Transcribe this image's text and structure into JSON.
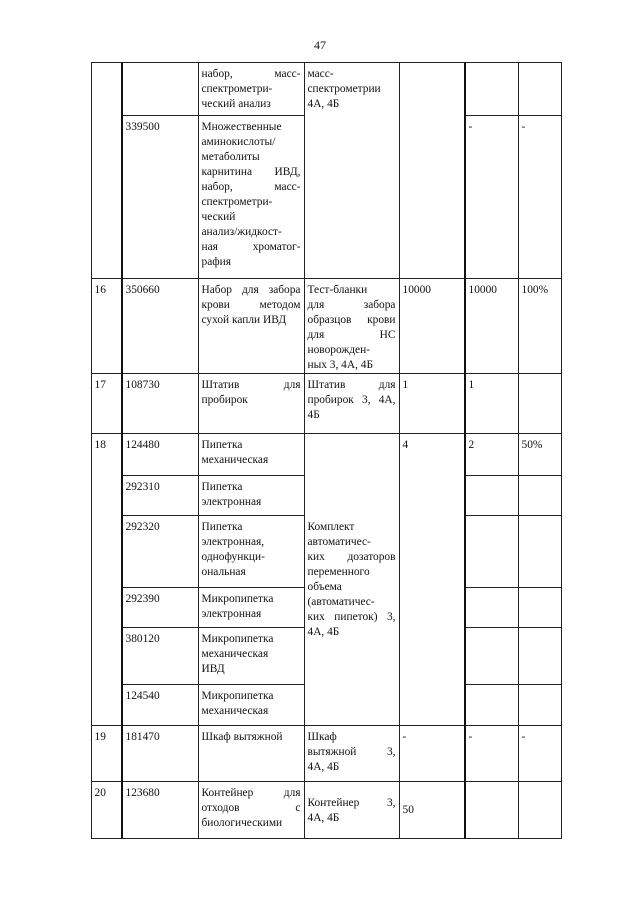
{
  "page_number": "47",
  "rows": [
    {
      "number": "",
      "items": [
        {
          "code": "",
          "name": [
            "набор, масс-",
            "спектрометри-",
            "ческий анализ"
          ],
          "available": "",
          "percent": ""
        },
        {
          "code": "339500",
          "name": [
            "Множественные",
            "аминокислоты/",
            "метаболиты",
            "карнитина ИВД,",
            "набор, масс-",
            "спектрометри-",
            "ческий",
            "анализ/жидкост-",
            "ная хроматог-",
            "рафия"
          ],
          "available": "-",
          "percent": "-"
        }
      ],
      "analog": [
        "масс-",
        "спектрометрии",
        "4А, 4Б"
      ],
      "required": ""
    },
    {
      "number": "16",
      "items": [
        {
          "code": "350660",
          "name": [
            "Набор для забора",
            "крови методом",
            "сухой капли ИВД"
          ],
          "available": "10000",
          "percent": "100%"
        }
      ],
      "analog": [
        "Тест-бланки",
        "для забора",
        "образцов крови",
        "для НС",
        "новорожден-",
        "ных 3, 4А, 4Б"
      ],
      "required": "10000"
    },
    {
      "number": "17",
      "items": [
        {
          "code": "108730",
          "name": [
            "Штатив для",
            "пробирок"
          ],
          "available": "1",
          "percent": ""
        }
      ],
      "analog": [
        "Штатив для",
        "пробирок 3, 4А,",
        "4Б"
      ],
      "required": "1"
    },
    {
      "number": "18",
      "items": [
        {
          "code": "124480",
          "name": [
            "Пипетка",
            "механическая"
          ],
          "available": "2",
          "percent": "50%"
        },
        {
          "code": "292310",
          "name": [
            "Пипетка",
            "электронная"
          ],
          "available": "",
          "percent": ""
        },
        {
          "code": "292320",
          "name": [
            "Пипетка",
            "электронная,",
            "однофункци-",
            "ональная"
          ],
          "available": "",
          "percent": ""
        },
        {
          "code": "292390",
          "name": [
            "Микропипетка",
            "электронная"
          ],
          "available": "",
          "percent": ""
        },
        {
          "code": "380120",
          "name": [
            "Микропипетка",
            "механическая",
            "ИВД"
          ],
          "available": "",
          "percent": ""
        },
        {
          "code": "124540",
          "name": [
            "Микропипетка",
            "механическая"
          ],
          "available": "",
          "percent": ""
        }
      ],
      "analog": [
        "Комплект",
        "автоматичес-",
        "ких дозаторов",
        "переменного",
        "объема",
        "(автоматичес-",
        "ких пипеток) 3,",
        "4А, 4Б"
      ],
      "required": "4"
    },
    {
      "number": "19",
      "items": [
        {
          "code": "181470",
          "name": [
            "Шкаф вытяжной"
          ],
          "available": "-",
          "percent": "-"
        }
      ],
      "analog": [
        "Шкаф",
        "вытяжной 3,",
        "4А, 4Б"
      ],
      "required": "-"
    },
    {
      "number": "20",
      "items": [
        {
          "code": "123680",
          "name": [
            "Контейнер для",
            "отходов с",
            "биологическими"
          ],
          "available": "",
          "percent": ""
        }
      ],
      "analog": [
        "Контейнер 3,",
        "4А, 4Б"
      ],
      "required": "50"
    }
  ]
}
